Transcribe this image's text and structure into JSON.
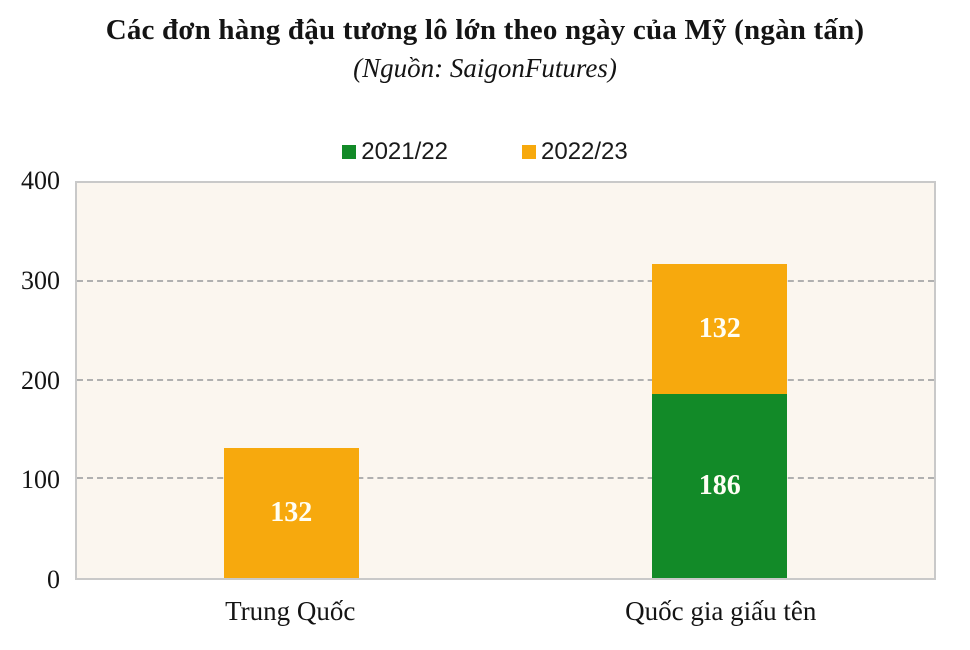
{
  "chart_data": {
    "type": "bar",
    "stacked": true,
    "title": "Các đơn hàng đậu tương lô lớn theo ngày của Mỹ (ngàn tấn)",
    "subtitle": "(Nguồn: SaigonFutures)",
    "categories": [
      "Trung Quốc",
      "Quốc gia giấu tên"
    ],
    "series": [
      {
        "name": "2021/22",
        "color": "#128A28",
        "values": [
          0,
          186
        ]
      },
      {
        "name": "2022/23",
        "color": "#F7A90D",
        "values": [
          132,
          132
        ]
      }
    ],
    "totals": [
      132,
      318
    ],
    "xlabel": "",
    "ylabel": "",
    "ylim": [
      0,
      400
    ],
    "yticks": [
      0,
      100,
      200,
      300,
      400
    ],
    "grid": "horizontal-dashed",
    "gridline_ticks": [
      100,
      200,
      300
    ],
    "legend_position": "top-center",
    "colors": {
      "plot_background": "#FBF6EF",
      "plot_border": "#C9C9C9",
      "gridline": "#B0B0B0",
      "value_label": "#FFFEF4",
      "text": "#141414"
    }
  }
}
